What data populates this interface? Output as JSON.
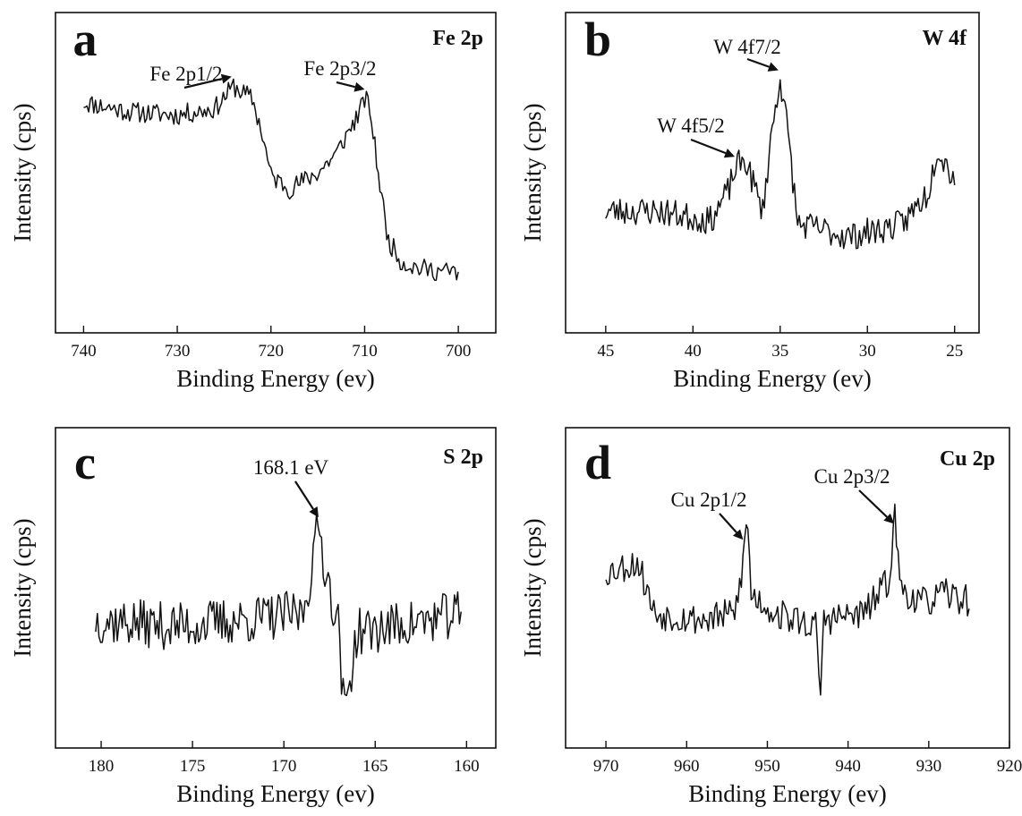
{
  "chart_data": [
    {
      "type": "line",
      "panel": "a",
      "element": "Fe 2p",
      "xlabel": "Binding Energy (ev)",
      "ylabel": "Intensity (cps)",
      "xlim": [
        743,
        696
      ],
      "ylim": [
        0,
        1
      ],
      "xticks": [
        "740",
        "730",
        "720",
        "710",
        "700"
      ],
      "xtick_values": [
        740,
        730,
        720,
        710,
        700
      ],
      "grid": false,
      "x_start": 740,
      "x_end": 700,
      "anchors": [
        [
          740,
          0.72
        ],
        [
          735,
          0.69
        ],
        [
          730,
          0.68
        ],
        [
          726,
          0.7
        ],
        [
          724,
          0.77
        ],
        [
          722,
          0.73
        ],
        [
          721,
          0.63
        ],
        [
          720,
          0.49
        ],
        [
          718,
          0.45
        ],
        [
          715,
          0.5
        ],
        [
          713,
          0.56
        ],
        [
          711.5,
          0.64
        ],
        [
          710.5,
          0.69
        ],
        [
          710,
          0.73
        ],
        [
          709.5,
          0.71
        ],
        [
          708.5,
          0.49
        ],
        [
          707.5,
          0.29
        ],
        [
          706,
          0.22
        ],
        [
          704,
          0.2
        ],
        [
          701,
          0.19
        ],
        [
          700,
          0.19
        ]
      ],
      "noise": 0.032,
      "seed": 11,
      "peaks": [
        {
          "label": "Fe 2p1/2",
          "x": 724.2,
          "y": 0.8
        },
        {
          "label": "Fe 2p3/2",
          "x": 710.0,
          "y": 0.76
        }
      ]
    },
    {
      "type": "line",
      "panel": "b",
      "element": "W 4f",
      "xlabel": "Binding Energy (ev)",
      "ylabel": "Intensity (cps)",
      "xlim": [
        47.3,
        23.6
      ],
      "ylim": [
        0,
        1
      ],
      "xticks": [
        "45",
        "40",
        "35",
        "30",
        "25"
      ],
      "xtick_values": [
        45,
        40,
        35,
        30,
        25
      ],
      "grid": false,
      "x_start": 45,
      "x_end": 25,
      "anchors": [
        [
          45,
          0.38
        ],
        [
          42,
          0.38
        ],
        [
          39,
          0.35
        ],
        [
          38,
          0.44
        ],
        [
          37.5,
          0.52
        ],
        [
          37,
          0.54
        ],
        [
          36,
          0.38
        ],
        [
          35.5,
          0.62
        ],
        [
          35,
          0.8
        ],
        [
          34.5,
          0.6
        ],
        [
          34,
          0.34
        ],
        [
          31,
          0.3
        ],
        [
          28,
          0.34
        ],
        [
          26.5,
          0.44
        ],
        [
          26,
          0.58
        ],
        [
          25,
          0.48
        ]
      ],
      "noise": 0.045,
      "seed": 23,
      "peaks": [
        {
          "label": "W 4f7/2",
          "x": 35.1,
          "y": 0.82
        },
        {
          "label": "W 4f5/2",
          "x": 37.6,
          "y": 0.55
        }
      ]
    },
    {
      "type": "line",
      "panel": "c",
      "element": "S 2p",
      "xlabel": "Binding Energy (ev)",
      "ylabel": "Intensity (cps)",
      "xlim": [
        182.5,
        158.4
      ],
      "ylim": [
        0,
        1
      ],
      "xticks": [
        "180",
        "175",
        "170",
        "165",
        "160"
      ],
      "xtick_values": [
        180,
        175,
        170,
        165,
        160
      ],
      "grid": false,
      "x_start": 180.3,
      "x_end": 160.3,
      "anchors": [
        [
          180.3,
          0.4
        ],
        [
          176,
          0.38
        ],
        [
          172,
          0.4
        ],
        [
          169,
          0.42
        ],
        [
          168.5,
          0.55
        ],
        [
          168.1,
          0.7
        ],
        [
          167.7,
          0.55
        ],
        [
          167,
          0.38
        ],
        [
          166.7,
          0.1
        ],
        [
          166,
          0.36
        ],
        [
          162,
          0.4
        ],
        [
          160.3,
          0.42
        ]
      ],
      "noise": 0.075,
      "seed": 37,
      "peaks": [
        {
          "label": "168.1 eV",
          "x": 168.1,
          "y": 0.72
        }
      ]
    },
    {
      "type": "line",
      "panel": "d",
      "element": "Cu 2p",
      "xlabel": "Binding Energy (ev)",
      "ylabel": "Intensity (cps)",
      "xlim": [
        975,
        920
      ],
      "ylim": [
        0,
        1
      ],
      "xticks": [
        "970",
        "960",
        "950",
        "940",
        "930",
        "920"
      ],
      "xtick_values": [
        970,
        960,
        950,
        940,
        930,
        920
      ],
      "grid": false,
      "x_start": 970,
      "x_end": 925,
      "anchors": [
        [
          970,
          0.55
        ],
        [
          966,
          0.58
        ],
        [
          964,
          0.42
        ],
        [
          958,
          0.4
        ],
        [
          954,
          0.42
        ],
        [
          953,
          0.58
        ],
        [
          952.5,
          0.73
        ],
        [
          952,
          0.48
        ],
        [
          949,
          0.42
        ],
        [
          944,
          0.38
        ],
        [
          943.5,
          0.15
        ],
        [
          943,
          0.4
        ],
        [
          938,
          0.42
        ],
        [
          935,
          0.52
        ],
        [
          934.2,
          0.72
        ],
        [
          933.5,
          0.5
        ],
        [
          931,
          0.45
        ],
        [
          928,
          0.48
        ],
        [
          925,
          0.46
        ]
      ],
      "noise": 0.05,
      "seed": 53,
      "peaks": [
        {
          "label": "Cu 2p1/2",
          "x": 953.0,
          "y": 0.65
        },
        {
          "label": "Cu 2p3/2",
          "x": 934.3,
          "y": 0.7
        }
      ]
    }
  ]
}
